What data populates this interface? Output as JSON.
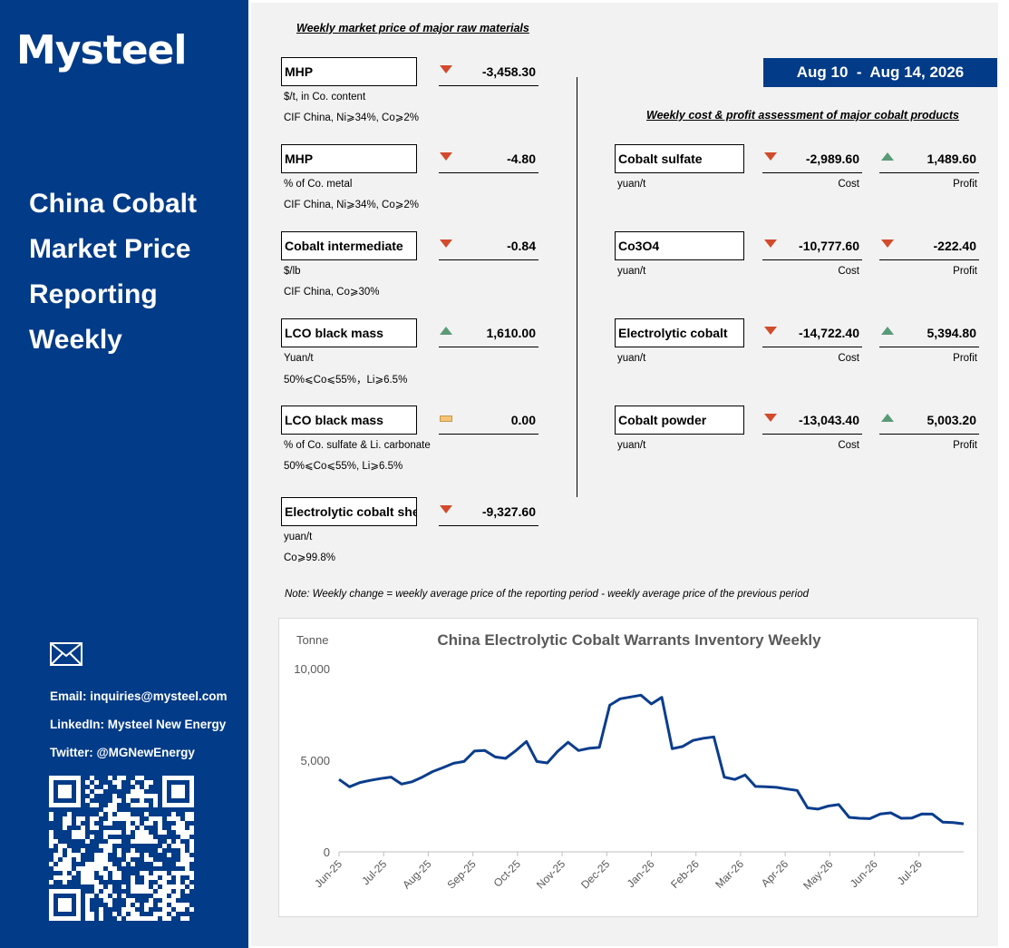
{
  "brand": {
    "logo_text": "Mysteel"
  },
  "report": {
    "title_lines": [
      "China Cobalt",
      "Market Price",
      "Reporting",
      "Weekly"
    ]
  },
  "contact": {
    "email": "Email: inquiries@mysteel.com",
    "linkedin": "LinkedIn: Mysteel New Energy",
    "twitter": "Twitter: @MGNewEnergy"
  },
  "raw_materials": {
    "title": "Weekly market price of major raw materials",
    "items": [
      {
        "name": "MHP",
        "change": "-3,458.30",
        "direction": "down",
        "unit": "$/t, in Co. content",
        "spec": "CIF China, Ni⩾34%, Co⩾2%"
      },
      {
        "name": "MHP",
        "change": "-4.80",
        "direction": "down",
        "unit": "% of Co. metal",
        "spec": "CIF China, Ni⩾34%, Co⩾2%"
      },
      {
        "name": "Cobalt intermediate",
        "change": "-0.84",
        "direction": "down",
        "unit": "$/lb",
        "spec": "CIF China, Co⩾30%"
      },
      {
        "name": "LCO black mass",
        "change": "1,610.00",
        "direction": "up",
        "unit": "Yuan/t",
        "spec": "50%⩽Co⩽55%，Li⩾6.5%"
      },
      {
        "name": "LCO black mass",
        "change": "0.00",
        "direction": "flat",
        "unit": "% of Co. sulfate & Li. carbonate",
        "spec": "50%⩽Co⩽55%, Li⩾6.5%"
      },
      {
        "name": "Electrolytic cobalt sheet",
        "change": "-9,327.60",
        "direction": "down",
        "unit": "yuan/t",
        "spec": "Co⩾99.8%"
      }
    ]
  },
  "period": {
    "label": "Aug 10  -  Aug 14, 2026"
  },
  "cost_profit": {
    "title": "Weekly cost & profit assessment of major cobalt products",
    "cost_label": "Cost",
    "profit_label": "Profit",
    "items": [
      {
        "name": "Cobalt sulfate",
        "unit": "yuan/t",
        "cost": "-2,989.60",
        "cost_dir": "down",
        "profit": "1,489.60",
        "profit_dir": "up"
      },
      {
        "name": "Co3O4",
        "unit": "yuan/t",
        "cost": "-10,777.60",
        "cost_dir": "down",
        "profit": "-222.40",
        "profit_dir": "down"
      },
      {
        "name": "Electrolytic cobalt",
        "unit": "yuan/t",
        "cost": "-14,722.40",
        "cost_dir": "down",
        "profit": "5,394.80",
        "profit_dir": "up"
      },
      {
        "name": "Cobalt powder",
        "unit": "yuan/t",
        "cost": "-13,043.40",
        "cost_dir": "down",
        "profit": "5,003.20",
        "profit_dir": "up"
      }
    ]
  },
  "note": "Note: Weekly change = weekly average price of the reporting period - weekly average price of the previous period",
  "colors": {
    "brand_blue": "#023b87",
    "down": "#d24b2c",
    "up": "#5a9a77",
    "flat": "#f6c275",
    "line": "#0b3d8c"
  },
  "chart_data": {
    "type": "line",
    "title": "China Electrolytic Cobalt Warrants Inventory Weekly",
    "ylabel": "Tonne",
    "xlabel": "",
    "ylim": [
      0,
      10000
    ],
    "yticks": [
      "0",
      "5,000",
      "10,000"
    ],
    "xtick_labels": [
      "Jun-25",
      "Jul-25",
      "Aug-25",
      "Sep-25",
      "Oct-25",
      "Nov-25",
      "Dec-25",
      "Jan-26",
      "Feb-26",
      "Mar-26",
      "Apr-26",
      "May-26",
      "Jun-26",
      "Jul-26"
    ],
    "grid": false,
    "series": [
      {
        "values": [
          3950,
          3550,
          3780,
          3900,
          4000,
          4080,
          3700,
          3820,
          4080,
          4380,
          4600,
          4830,
          4930,
          5500,
          5530,
          5180,
          5100,
          5530,
          6020,
          4930,
          4850,
          5480,
          5980,
          5530,
          5650,
          5700,
          8000,
          8350,
          8450,
          8550,
          8070,
          8430,
          5630,
          5750,
          6080,
          6200,
          6270,
          4080,
          3950,
          4200,
          3570,
          3550,
          3520,
          3430,
          3350,
          2400,
          2330,
          2500,
          2580,
          1880,
          1830,
          1810,
          2070,
          2130,
          1830,
          1840,
          2070,
          2060,
          1620,
          1600,
          1530
        ]
      }
    ]
  }
}
